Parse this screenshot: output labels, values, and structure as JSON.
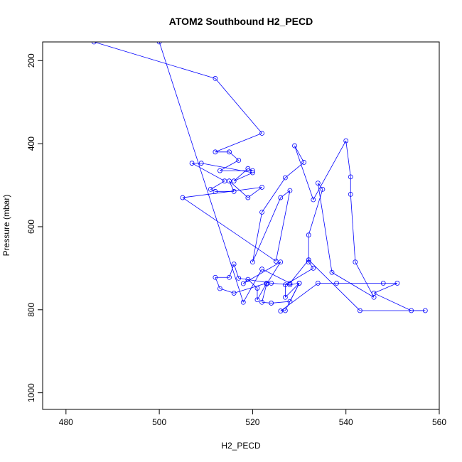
{
  "chart_data": {
    "type": "line",
    "title": "ATOM2 Southbound H2_PECD",
    "xlabel": "H2_PECD",
    "ylabel": "Pressure (mbar)",
    "xlim": [
      475,
      560
    ],
    "ylim": [
      1040,
      155
    ],
    "y_reversed": true,
    "x_ticks": [
      480,
      500,
      520,
      540,
      560
    ],
    "y_ticks": [
      200,
      400,
      600,
      800,
      1000
    ],
    "grid": false,
    "color": "#0000ff",
    "marker": "open-circle",
    "x": [
      486,
      512,
      522,
      512,
      515,
      517,
      513,
      520,
      519,
      516,
      520,
      509,
      507,
      514,
      511,
      512,
      516,
      515,
      519,
      522,
      505,
      525,
      528,
      526,
      520,
      522,
      527,
      531,
      529,
      533,
      540,
      541,
      541,
      542,
      546,
      537,
      534,
      535,
      532,
      532,
      533,
      527,
      527,
      530,
      528,
      524,
      522,
      523,
      526,
      518,
      519,
      521,
      521,
      523,
      516,
      513,
      512,
      515,
      516,
      517,
      524,
      528,
      530,
      527,
      526,
      534,
      538,
      548,
      551,
      546,
      554,
      557,
      543,
      532,
      528,
      522,
      518,
      500
    ],
    "y": [
      155,
      243,
      375,
      420,
      420,
      440,
      465,
      465,
      460,
      490,
      470,
      447,
      447,
      490,
      510,
      515,
      515,
      490,
      530,
      505,
      530,
      683,
      513,
      530,
      685,
      565,
      482,
      445,
      405,
      535,
      393,
      480,
      522,
      685,
      770,
      710,
      495,
      510,
      620,
      685,
      700,
      740,
      770,
      736,
      780,
      784,
      782,
      738,
      685,
      737,
      727,
      748,
      776,
      736,
      760,
      749,
      722,
      722,
      690,
      724,
      736,
      740,
      736,
      802,
      803,
      736,
      736,
      736,
      736,
      760,
      802,
      802,
      802,
      680,
      736,
      702,
      782,
      155
    ]
  }
}
